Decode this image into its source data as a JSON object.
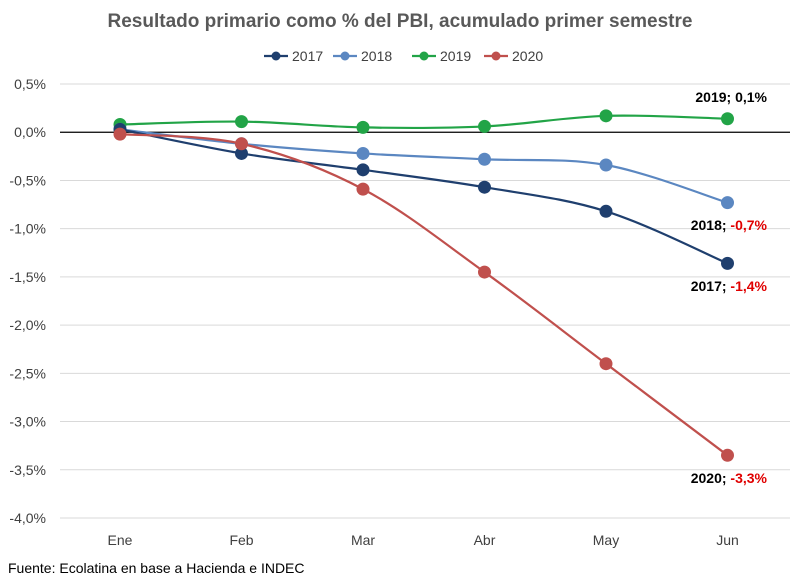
{
  "chart_data": {
    "type": "line",
    "title": "Resultado primario como % del PBI, acumulado primer semestre",
    "xlabel": "",
    "ylabel": "",
    "categories": [
      "Ene",
      "Feb",
      "Mar",
      "Abr",
      "May",
      "Jun"
    ],
    "y_ticks": [
      "0,5%",
      "0,0%",
      "-0,5%",
      "-1,0%",
      "-1,5%",
      "-2,0%",
      "-2,5%",
      "-3,0%",
      "-3,5%",
      "-4,0%"
    ],
    "y_tick_values": [
      0.5,
      0.0,
      -0.5,
      -1.0,
      -1.5,
      -2.0,
      -2.5,
      -3.0,
      -3.5,
      -4.0
    ],
    "ylim": [
      -4.0,
      0.5
    ],
    "grid": true,
    "legend_position": "top",
    "series": [
      {
        "name": "2017",
        "color": "#1f3f6e",
        "values": [
          0.03,
          -0.22,
          -0.39,
          -0.57,
          -0.82,
          -1.36
        ]
      },
      {
        "name": "2018",
        "color": "#5b87c1",
        "values": [
          0.03,
          -0.12,
          -0.22,
          -0.28,
          -0.34,
          -0.73
        ]
      },
      {
        "name": "2019",
        "color": "#22a447",
        "values": [
          0.08,
          0.11,
          0.05,
          0.06,
          0.17,
          0.14
        ]
      },
      {
        "name": "2020",
        "color": "#c0504d",
        "values": [
          -0.02,
          -0.12,
          -0.59,
          -1.45,
          -2.4,
          -3.35
        ]
      }
    ],
    "annotations": [
      {
        "series": "2019",
        "prefix": "2019; ",
        "value": "0,1%",
        "value_color": "#000000"
      },
      {
        "series": "2018",
        "prefix": "2018; ",
        "value": "-0,7%",
        "value_color": "#e00000"
      },
      {
        "series": "2017",
        "prefix": "2017; ",
        "value": "-1,4%",
        "value_color": "#e00000"
      },
      {
        "series": "2020",
        "prefix": "2020; ",
        "value": "-3,3%",
        "value_color": "#e00000"
      }
    ]
  },
  "source": "Fuente: Ecolatina en base a Hacienda e INDEC"
}
